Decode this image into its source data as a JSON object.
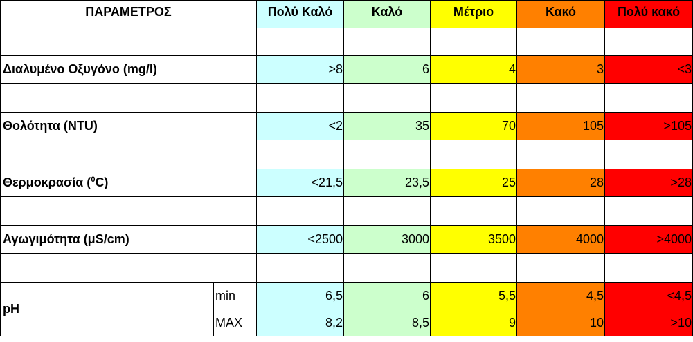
{
  "header": {
    "parameter": "ΠΑΡΑΜΕΤΡΟΣ",
    "classes": [
      "Πολύ Καλό",
      "Καλό",
      "Μέτριο",
      "Κακό",
      "Πολύ κακό"
    ]
  },
  "colors": {
    "very_good": "#ccffff",
    "good": "#ccffcc",
    "moderate": "#ffff00",
    "bad": "#ff8000",
    "very_bad": "#ff0000"
  },
  "rows": {
    "oxygen": {
      "label": "Διαλυμένο Οξυγόνο (mg/l)",
      "values": [
        ">8",
        "6",
        "4",
        "3",
        "<3"
      ]
    },
    "turbidity": {
      "label": "Θολότητα (NTU)",
      "values": [
        "<2",
        "35",
        "70",
        "105",
        ">105"
      ]
    },
    "temperature": {
      "label_pre": "Θερμοκρασία (",
      "label_sup": "0",
      "label_post": "C)",
      "values": [
        "<21,5",
        "23,5",
        "25",
        "28",
        ">28"
      ]
    },
    "conductivity": {
      "label": "Αγωγιμότητα (μS/cm)",
      "values": [
        "<2500",
        "3000",
        "3500",
        "4000",
        ">4000"
      ]
    },
    "ph": {
      "label": "pH",
      "min": {
        "label": "min",
        "values": [
          "6,5",
          "6",
          "5,5",
          "4,5",
          "<4,5"
        ]
      },
      "max": {
        "label": "MAX",
        "values": [
          "8,2",
          "8,5",
          "9",
          "10",
          ">10"
        ]
      }
    }
  }
}
